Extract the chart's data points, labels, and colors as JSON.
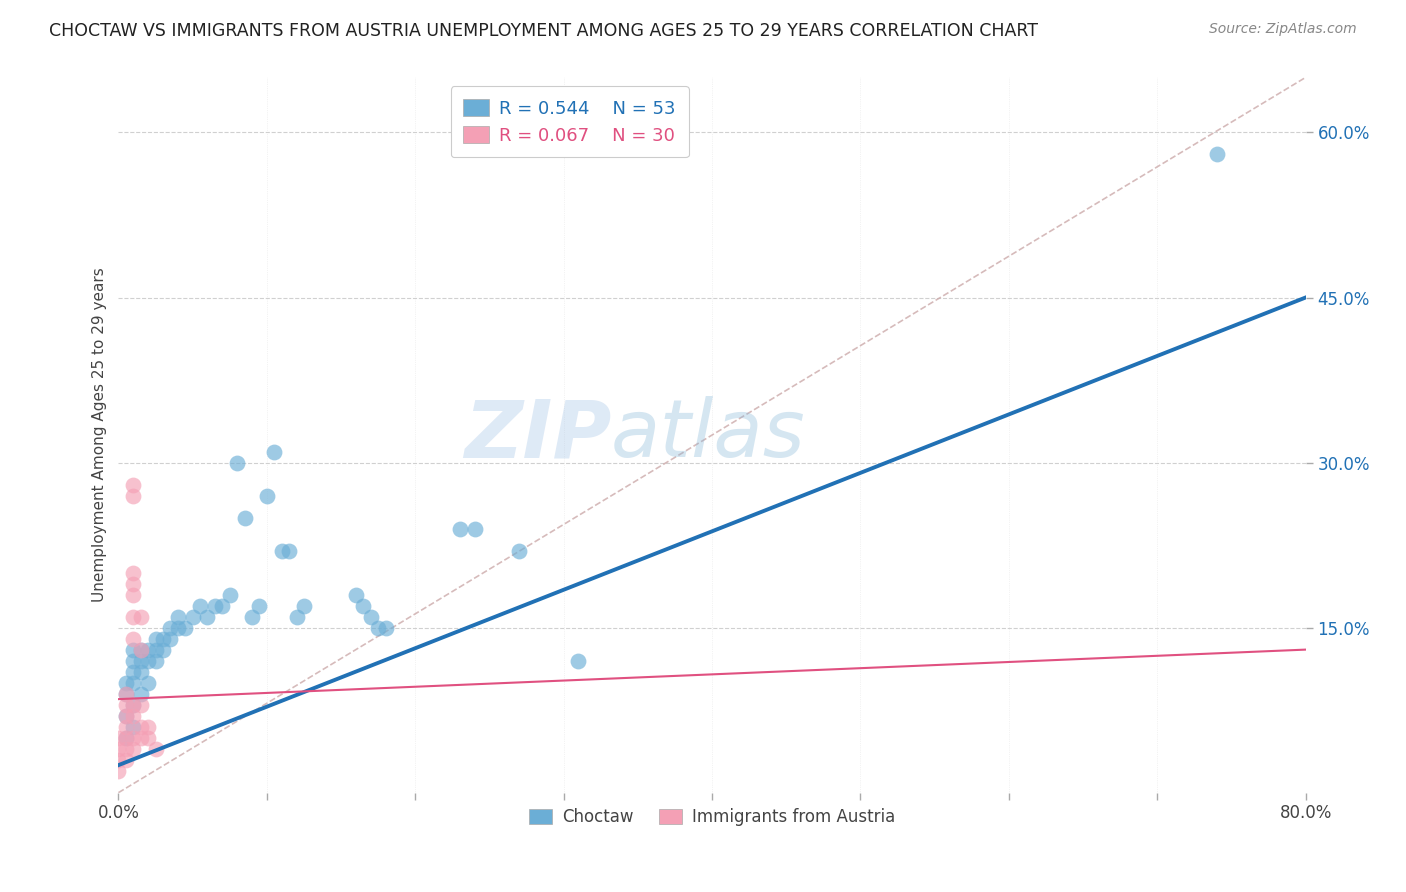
{
  "title": "CHOCTAW VS IMMIGRANTS FROM AUSTRIA UNEMPLOYMENT AMONG AGES 25 TO 29 YEARS CORRELATION CHART",
  "source": "Source: ZipAtlas.com",
  "ylabel": "Unemployment Among Ages 25 to 29 years",
  "xlim": [
    0.0,
    0.8
  ],
  "ylim": [
    0.0,
    0.65
  ],
  "ytick_positions": [
    0.15,
    0.3,
    0.45,
    0.6
  ],
  "ytick_labels": [
    "15.0%",
    "30.0%",
    "45.0%",
    "60.0%"
  ],
  "choctaw_color": "#6baed6",
  "austria_color": "#f4a0b5",
  "choctaw_line_color": "#2171b5",
  "austria_line_color": "#e05080",
  "diagonal_line_color": "#ccaaaa",
  "legend_R_choctaw": "R = 0.544",
  "legend_N_choctaw": "N = 53",
  "legend_R_austria": "R = 0.067",
  "legend_N_austria": "N = 30",
  "watermark_zip": "ZIP",
  "watermark_atlas": "atlas",
  "choctaw_scatter": [
    [
      0.005,
      0.05
    ],
    [
      0.005,
      0.07
    ],
    [
      0.005,
      0.09
    ],
    [
      0.005,
      0.1
    ],
    [
      0.01,
      0.06
    ],
    [
      0.01,
      0.08
    ],
    [
      0.01,
      0.1
    ],
    [
      0.01,
      0.11
    ],
    [
      0.01,
      0.12
    ],
    [
      0.01,
      0.13
    ],
    [
      0.015,
      0.09
    ],
    [
      0.015,
      0.11
    ],
    [
      0.015,
      0.12
    ],
    [
      0.015,
      0.13
    ],
    [
      0.02,
      0.1
    ],
    [
      0.02,
      0.12
    ],
    [
      0.02,
      0.13
    ],
    [
      0.025,
      0.12
    ],
    [
      0.025,
      0.13
    ],
    [
      0.025,
      0.14
    ],
    [
      0.03,
      0.13
    ],
    [
      0.03,
      0.14
    ],
    [
      0.035,
      0.14
    ],
    [
      0.035,
      0.15
    ],
    [
      0.04,
      0.15
    ],
    [
      0.04,
      0.16
    ],
    [
      0.045,
      0.15
    ],
    [
      0.05,
      0.16
    ],
    [
      0.055,
      0.17
    ],
    [
      0.06,
      0.16
    ],
    [
      0.065,
      0.17
    ],
    [
      0.07,
      0.17
    ],
    [
      0.075,
      0.18
    ],
    [
      0.08,
      0.3
    ],
    [
      0.085,
      0.25
    ],
    [
      0.09,
      0.16
    ],
    [
      0.095,
      0.17
    ],
    [
      0.1,
      0.27
    ],
    [
      0.105,
      0.31
    ],
    [
      0.11,
      0.22
    ],
    [
      0.115,
      0.22
    ],
    [
      0.12,
      0.16
    ],
    [
      0.125,
      0.17
    ],
    [
      0.16,
      0.18
    ],
    [
      0.165,
      0.17
    ],
    [
      0.17,
      0.16
    ],
    [
      0.175,
      0.15
    ],
    [
      0.18,
      0.15
    ],
    [
      0.23,
      0.24
    ],
    [
      0.24,
      0.24
    ],
    [
      0.27,
      0.22
    ],
    [
      0.31,
      0.12
    ],
    [
      0.74,
      0.58
    ]
  ],
  "austria_scatter": [
    [
      0.0,
      0.02
    ],
    [
      0.0,
      0.03
    ],
    [
      0.0,
      0.04
    ],
    [
      0.0,
      0.05
    ],
    [
      0.005,
      0.03
    ],
    [
      0.005,
      0.04
    ],
    [
      0.005,
      0.05
    ],
    [
      0.005,
      0.06
    ],
    [
      0.005,
      0.07
    ],
    [
      0.005,
      0.08
    ],
    [
      0.005,
      0.09
    ],
    [
      0.01,
      0.04
    ],
    [
      0.01,
      0.05
    ],
    [
      0.01,
      0.07
    ],
    [
      0.01,
      0.08
    ],
    [
      0.01,
      0.14
    ],
    [
      0.01,
      0.16
    ],
    [
      0.01,
      0.18
    ],
    [
      0.01,
      0.19
    ],
    [
      0.01,
      0.2
    ],
    [
      0.01,
      0.27
    ],
    [
      0.01,
      0.28
    ],
    [
      0.015,
      0.05
    ],
    [
      0.015,
      0.06
    ],
    [
      0.015,
      0.08
    ],
    [
      0.015,
      0.13
    ],
    [
      0.015,
      0.16
    ],
    [
      0.02,
      0.05
    ],
    [
      0.02,
      0.06
    ],
    [
      0.025,
      0.04
    ]
  ],
  "background_color": "#ffffff",
  "grid_color": "#d0d0d0"
}
